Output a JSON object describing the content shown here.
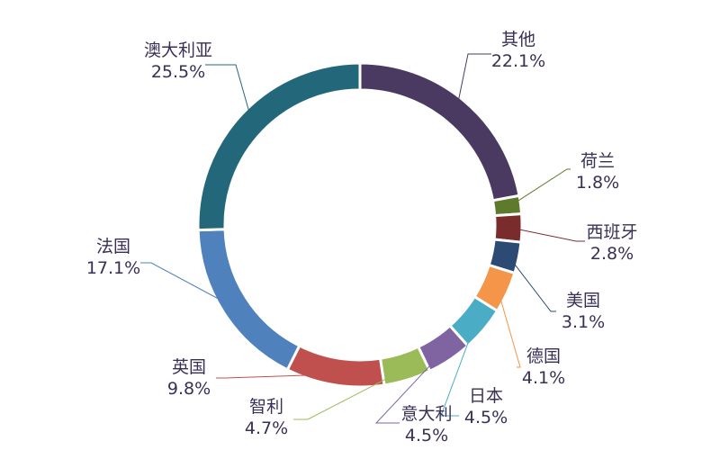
{
  "chart_data": {
    "type": "pie",
    "variant": "donut",
    "title": "",
    "legend": "none",
    "slices": [
      {
        "name": "其他",
        "value": 22.1,
        "value_label": "22.1%",
        "color": "#4a3960"
      },
      {
        "name": "荷兰",
        "value": 1.8,
        "value_label": "1.8%",
        "color": "#5e7a2c"
      },
      {
        "name": "西班牙",
        "value": 2.8,
        "value_label": "2.8%",
        "color": "#7a2c2c"
      },
      {
        "name": "美国",
        "value": 3.1,
        "value_label": "3.1%",
        "color": "#2c4a74"
      },
      {
        "name": "德国",
        "value": 4.1,
        "value_label": "4.1%",
        "color": "#f4954a"
      },
      {
        "name": "日本",
        "value": 4.5,
        "value_label": "4.5%",
        "color": "#4bacc6"
      },
      {
        "name": "意大利",
        "value": 4.5,
        "value_label": "4.5%",
        "color": "#8064a2"
      },
      {
        "name": "智利",
        "value": 4.7,
        "value_label": "4.7%",
        "color": "#9bbb59"
      },
      {
        "name": "英国",
        "value": 9.8,
        "value_label": "9.8%",
        "color": "#c0504d"
      },
      {
        "name": "法国",
        "value": 17.1,
        "value_label": "17.1%",
        "color": "#4f81bd"
      },
      {
        "name": "澳大利亚",
        "value": 25.5,
        "value_label": "25.5%",
        "color": "#23687a"
      }
    ]
  }
}
